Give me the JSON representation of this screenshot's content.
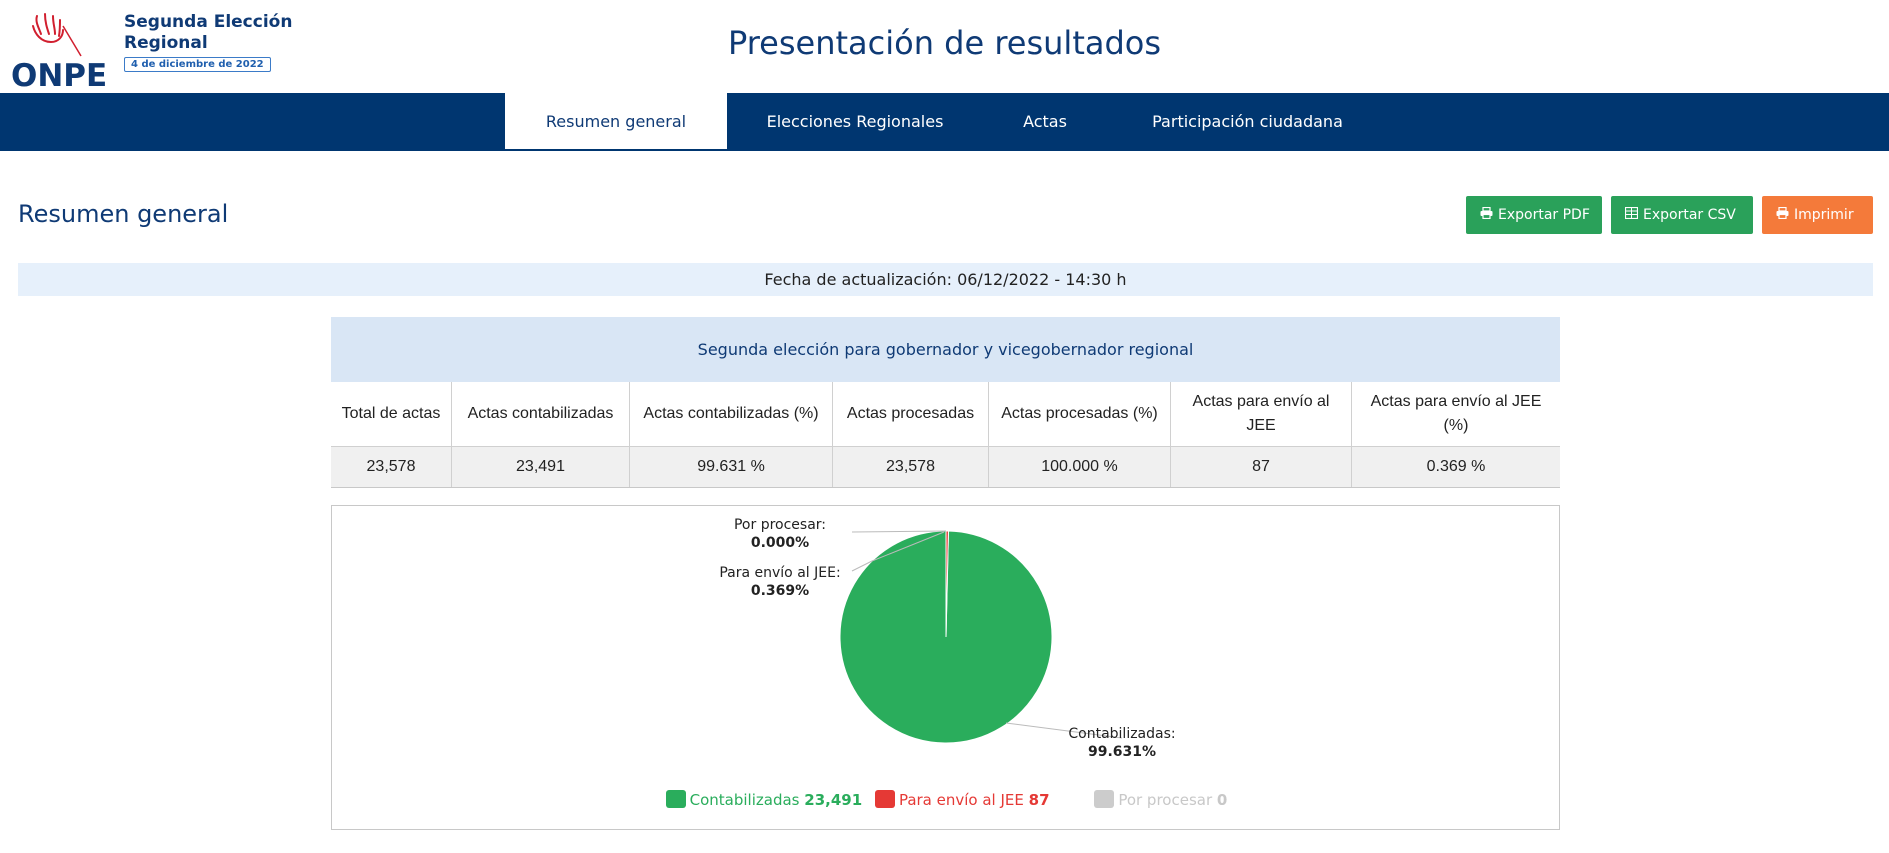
{
  "brand": {
    "logo_text": "ONPE",
    "election_title": "Segunda Elección Regional",
    "election_date": "4 de diciembre de 2022"
  },
  "header": {
    "page_title": "Presentación de resultados"
  },
  "nav": {
    "tabs": [
      {
        "label": "Resumen general",
        "active": true
      },
      {
        "label": "Elecciones Regionales",
        "active": false
      },
      {
        "label": "Actas",
        "active": false
      },
      {
        "label": "Participación ciudadana",
        "active": false
      }
    ]
  },
  "section": {
    "title": "Resumen general",
    "export_pdf": "Exportar PDF",
    "export_csv": "Exportar CSV",
    "print": "Imprimir",
    "update_text": "Fecha de actualización: 06/12/2022 - 14:30 h"
  },
  "table": {
    "caption": "Segunda elección para gobernador y vicegobernador regional",
    "headers": [
      "Total de actas",
      "Actas contabilizadas",
      "Actas contabilizadas (%)",
      "Actas procesadas",
      "Actas procesadas (%)",
      "Actas para envío al JEE",
      "Actas para envío al JEE (%)"
    ],
    "values": [
      "23,578",
      "23,491",
      "99.631 %",
      "23,578",
      "100.000 %",
      "87",
      "0.369 %"
    ]
  },
  "chart_data": {
    "type": "pie",
    "slices": [
      {
        "name": "Contabilizadas",
        "value": 23491,
        "value_label": "23,491",
        "percent": 99.631,
        "percent_label": "99.631%",
        "label_prefix": "Contabilizadas:",
        "color": "#2aad5c"
      },
      {
        "name": "Para envío al JEE",
        "value": 87,
        "value_label": "87",
        "percent": 0.369,
        "percent_label": "0.369%",
        "label_prefix": "Para envío al JEE:",
        "color": "#e53935"
      },
      {
        "name": "Por procesar",
        "value": 0,
        "value_label": "0",
        "percent": 0.0,
        "percent_label": "0.000%",
        "label_prefix": "Por procesar:",
        "color": "#cccccc"
      }
    ],
    "legend_position": "bottom"
  },
  "colors": {
    "navy": "#003670",
    "title_blue": "#0f3a75",
    "green_button": "#2aa15a",
    "orange_button": "#f47a3a"
  },
  "icons": {
    "pdf": "printer-icon",
    "csv": "spreadsheet-icon",
    "print": "printer-icon"
  }
}
